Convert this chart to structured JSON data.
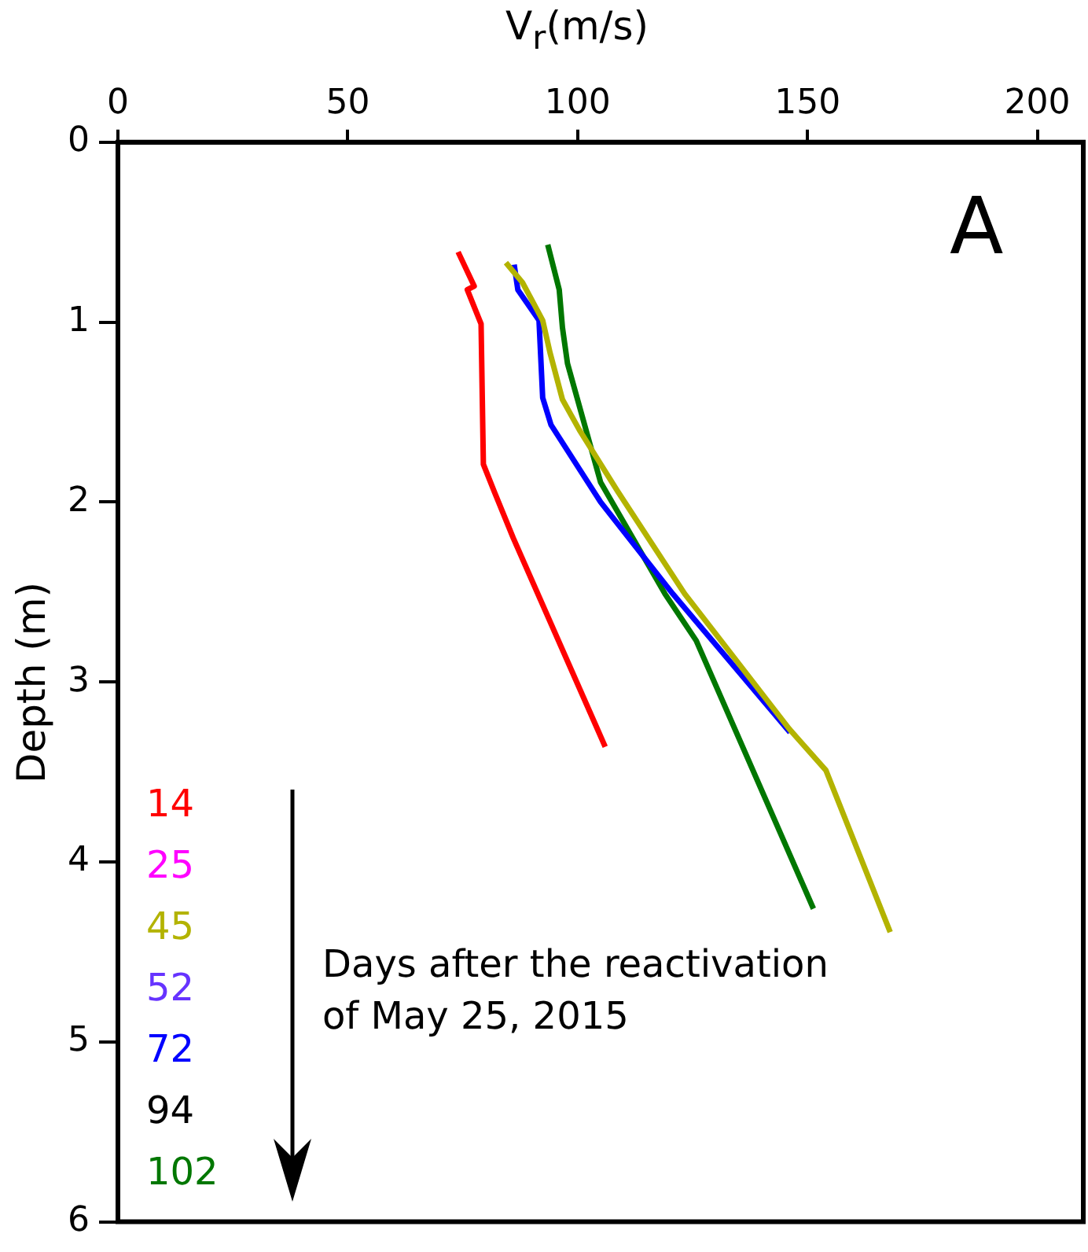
{
  "chart_data": {
    "type": "line",
    "xlabel": "V$_{r}$(m/s)",
    "ylabel": "Depth (m)",
    "legend_title": "Days after the reactivation of May 25, 2015",
    "annotations": [
      "A"
    ],
    "xlim": [
      0,
      210
    ],
    "xticks": [
      0,
      50,
      100,
      150,
      200
    ],
    "ylim": [
      6,
      0
    ],
    "yticks": [
      0,
      1,
      2,
      3,
      4,
      5,
      6
    ],
    "grid": false,
    "legend": "bottom left",
    "marker": "none",
    "line_style": "solid",
    "series": [
      {
        "name": "14",
        "color": "#ff0000",
        "x": [
          74,
          77.5,
          76,
          79,
          79.5,
          82,
          86,
          106
        ],
        "values": [
          0.61,
          0.8,
          0.82,
          1.01,
          1.79,
          1.95,
          2.2,
          3.36
        ]
      },
      {
        "name": "25",
        "color": "#ff00ff"
      },
      {
        "name": "45",
        "color": "#b3b300",
        "x": [
          84.4,
          88,
          92.4,
          94,
          96.7,
          100.4,
          108.7,
          123.3,
          146,
          154,
          168
        ],
        "values": [
          0.67,
          0.78,
          0.99,
          1.17,
          1.43,
          1.6,
          1.94,
          2.51,
          3.26,
          3.49,
          4.39
        ]
      },
      {
        "name": "52",
        "color": "#6633ff"
      },
      {
        "name": "72",
        "color": "#0000ff",
        "x": [
          86.2,
          87,
          91.6,
          92.4,
          94.2,
          105,
          120.7,
          146.2
        ],
        "values": [
          0.68,
          0.82,
          0.99,
          1.42,
          1.57,
          2.0,
          2.51,
          3.28
        ]
      },
      {
        "name": "94",
        "color": "#000000"
      },
      {
        "name": "102",
        "color": "#007700",
        "x": [
          93.5,
          96,
          96.7,
          97.8,
          105,
          119,
          125.8,
          151.3
        ],
        "values": [
          0.57,
          0.82,
          1.03,
          1.23,
          1.89,
          2.51,
          2.77,
          4.26
        ]
      }
    ]
  }
}
